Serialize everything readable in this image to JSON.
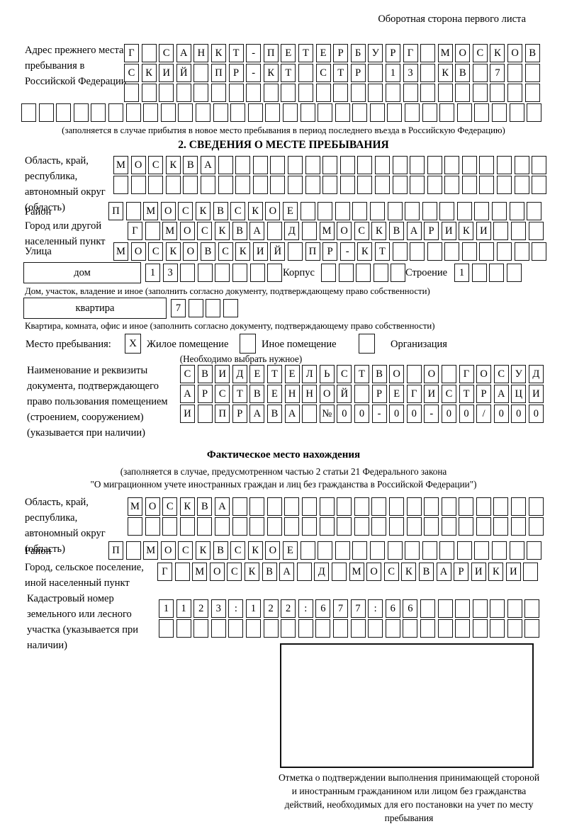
{
  "page": {
    "back_note": "Оборотная сторона первого листа"
  },
  "prev_address": {
    "label": "Адрес прежнего места пребывания в Российской Федерации",
    "rows": {
      "r1": "Г САНКТ-ПЕТЕРБУРГ МОСКОВ",
      "r2": "СКИЙ ПР-КТ СТР 13 КВ 7",
      "r3": "",
      "r4": ""
    },
    "caption": "(заполняется в случае прибытия в новое место пребывания в период последнего въезда в Российскую Федерацию)"
  },
  "section2": {
    "title": "2. СВЕДЕНИЯ О МЕСТЕ ПРЕБЫВАНИЯ",
    "region_label": "Область, край, республика, автономный округ (область)",
    "region_rows": {
      "r1": "МОСКВА",
      "r2": ""
    },
    "district_label": "Район",
    "district_row": "П МОСКВСКОЕ",
    "city_label": "Город или другой населенный пункт",
    "city_row": "Г МОСКВА Д МОСКВАРИКИ",
    "street_label": "Улица",
    "street_row": "МОСКОВСКИЙ ПР-КТ",
    "house_label": "дом",
    "house_row": "13",
    "korpus_label": "Корпус",
    "korpus_row": "",
    "stroenie_label": "Строение",
    "stroenie_row": "1",
    "house_caption": "Дом, участок, владение и иное (заполнить согласно документу, подтверждающему право собственности)",
    "apartment_label": "квартира",
    "apartment_row": "7",
    "apartment_caption": "Квартира, комната, офис и иное (заполнить согласно документу, подтверждающему право собственности)",
    "stay_type_label": "Место пребывания:",
    "stay_options": {
      "residential": {
        "label": "Жилое помещение",
        "checked": "X"
      },
      "other": {
        "label": "Иное помещение",
        "checked": ""
      },
      "organization": {
        "label": "Организация",
        "checked": ""
      }
    },
    "stay_note": "(Необходимо выбрать нужное)",
    "doc_label": "Наименование и реквизиты документа, подтверждающего право пользования помещением (строением, сооружением) (указывается при наличии)",
    "doc_rows": {
      "r1": "СВИДЕТЕЛЬСТВО О ГОСУД",
      "r2": "АРСТВЕННОЙ РЕГИСТРАЦИ",
      "r3": "И ПРАВА №00-00-00/000"
    }
  },
  "actual_location": {
    "title": "Фактическое место нахождения",
    "caption_line1": "(заполняется в случае, предусмотренном частью 2 статьи 21 Федерального закона",
    "caption_line2": "\"О миграционном учете иностранных граждан и лиц без гражданства в Российской Федерации\")",
    "region_label": "Область, край, республика, автономный округ (область)",
    "region_rows": {
      "r1": "МОСКВА",
      "r2": ""
    },
    "district_label": "Район",
    "district_row": "П МОСКВСКОЕ",
    "city_label": "Город, сельское поселение, иной населенный пункт",
    "city_row": "Г МОСКВА Д МОСКВАРИКИ",
    "cadastre_label": "Кадастровый номер земельного или лесного участка (указывается при наличии)",
    "cadastre_rows": {
      "r1": "1123:122:677:66",
      "r2": ""
    }
  },
  "stamp": {
    "caption": "Отметка о подтверждении выполнения принимающей стороной и иностранным гражданином или лицом без гражданства действий, необходимых для его постановки на учет по месту пребывания"
  }
}
